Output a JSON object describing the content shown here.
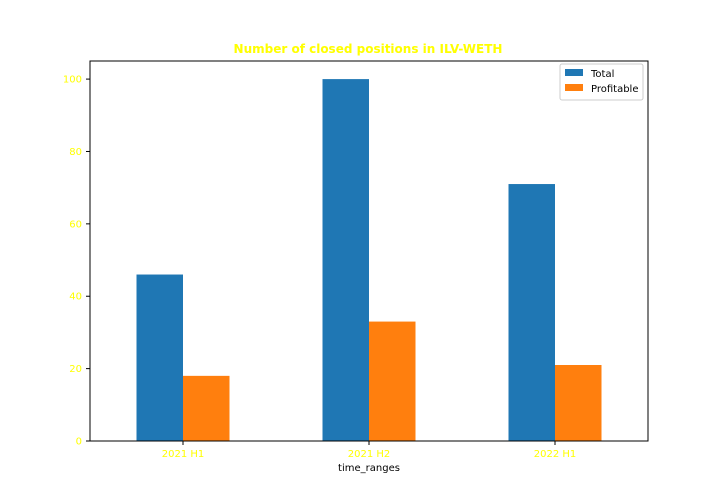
{
  "chart_data": {
    "type": "bar",
    "title": "Number of closed positions in ILV-WETH",
    "xlabel": "time_ranges",
    "ylabel": "",
    "categories": [
      "2021 H1",
      "2021 H2",
      "2022 H1"
    ],
    "series": [
      {
        "name": "Total",
        "values": [
          46,
          100,
          71
        ],
        "color": "#1f77b4"
      },
      {
        "name": "Profitable",
        "values": [
          18,
          33,
          21
        ],
        "color": "#ff7f0e"
      }
    ],
    "ylim": [
      0,
      105
    ],
    "yticks": [
      0,
      20,
      40,
      60,
      80,
      100
    ],
    "grid": false,
    "legend_position": "top-right"
  },
  "colors": {
    "title": "#ffff00",
    "tick_labels": "#ffff00",
    "axis_label": "#000000",
    "frame": "#000000"
  }
}
